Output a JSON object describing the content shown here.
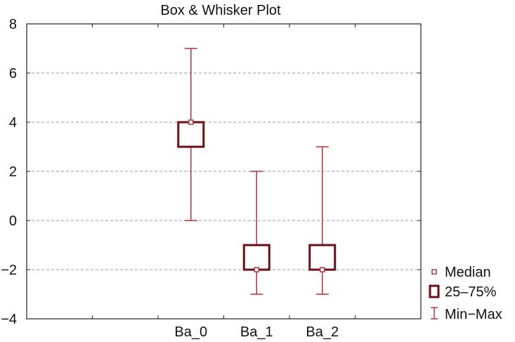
{
  "chart_data": {
    "type": "box",
    "title": "Box & Whisker Plot",
    "categories": [
      "Ba_0",
      "Ba_1",
      "Ba_2"
    ],
    "boxes": [
      {
        "category": "Ba_0",
        "min": 0,
        "q1": 3,
        "median": 4,
        "q3": 4,
        "max": 7
      },
      {
        "category": "Ba_1",
        "min": -3,
        "q1": -2,
        "median": -2,
        "q3": -1,
        "max": 2
      },
      {
        "category": "Ba_2",
        "min": -3,
        "q1": -2,
        "median": -2,
        "q3": -1,
        "max": 3
      }
    ],
    "ylim": [
      -4,
      8
    ],
    "yticks": [
      "8",
      "6",
      "4",
      "2",
      "0",
      "−2",
      "−4"
    ],
    "ytick_values": [
      8,
      6,
      4,
      2,
      0,
      -2,
      -4
    ],
    "grid": "horizontal dashed",
    "legend": {
      "placement": "right",
      "entries": [
        {
          "symbol": "median-marker",
          "label": "Median"
        },
        {
          "symbol": "box",
          "label": "25–75%"
        },
        {
          "symbol": "whisker",
          "label": "Min−Max"
        }
      ]
    },
    "colors": {
      "box": "#6b0f17",
      "whisker": "#b5323c",
      "median": "#b5323c",
      "grid": "#9a9a9a"
    }
  }
}
